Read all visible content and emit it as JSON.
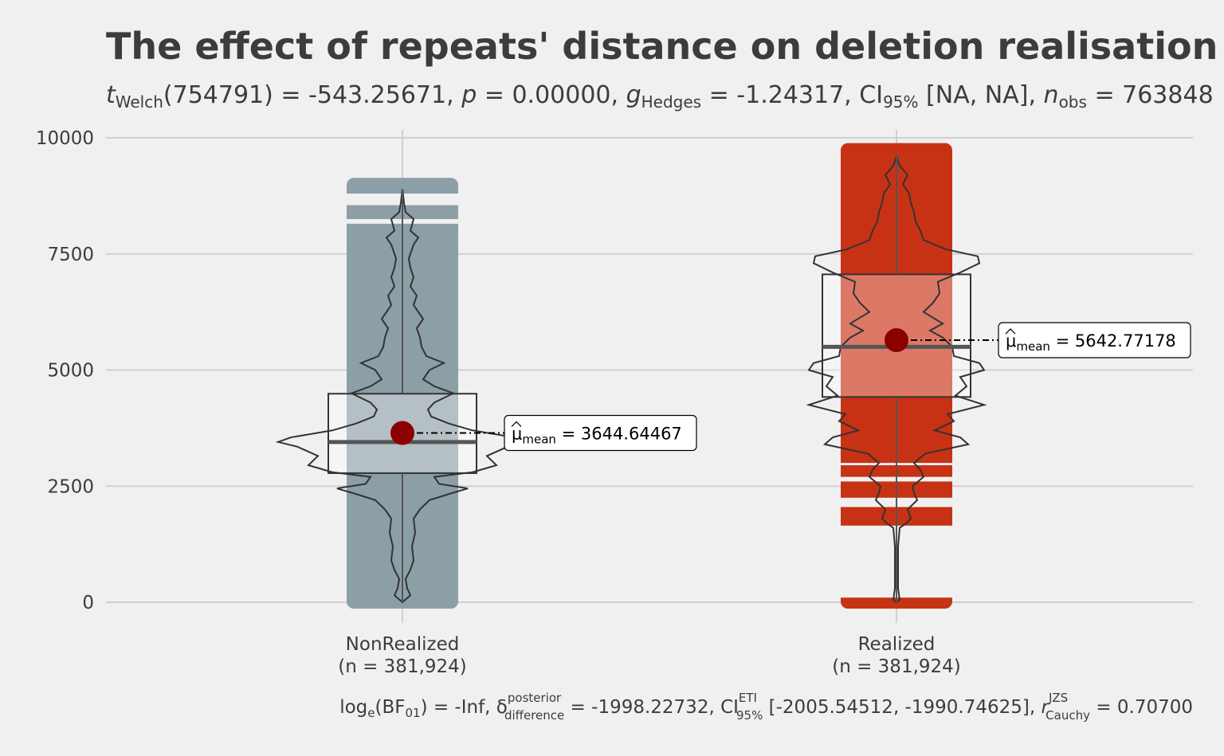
{
  "chart_data": {
    "type": "violin-box",
    "title": "The effect of repeats' distance on deletion realisation",
    "subtitle": {
      "t_label": "t",
      "t_sub": "Welch",
      "t_value": "(754791) = -543.25671, ",
      "p_label": "p",
      "p_value": " = 0.00000, ",
      "g_label": "g",
      "g_sub": "Hedges",
      "g_value": " = -1.24317, CI",
      "ci_sub": "95%",
      "ci_value": " [NA, NA], ",
      "n_label": "n",
      "n_sub": "obs",
      "n_value": " = 763848"
    },
    "ylim": [
      -600,
      10300
    ],
    "y_ticks": [
      "0",
      "2500",
      "5000",
      "7500",
      "10000"
    ],
    "grid": true,
    "groups": [
      {
        "label": "NonRealized",
        "n_label": "(n = 381,924)",
        "color": "#8c9fa6",
        "box": {
          "q1": 2780,
          "median": 3450,
          "q3": 4490,
          "whisker_low": 0,
          "whisker_high": 8900
        },
        "point_range": [
          0,
          9000
        ],
        "gaps": [
          [
            8550,
            8800
          ],
          [
            8150,
            8250
          ]
        ],
        "mean": 3644.64467,
        "mean_label": "3644.64467"
      },
      {
        "label": "Realized",
        "n_label": "(n = 381,924)",
        "color": "#c83214",
        "box": {
          "q1": 4420,
          "median": 5500,
          "q3": 7060,
          "whisker_low": 0,
          "whisker_high": 9650
        },
        "point_range": [
          0,
          9750
        ],
        "gaps": [
          [
            100,
            1650
          ],
          [
            2050,
            2250
          ],
          [
            2600,
            2700
          ],
          [
            2950,
            3000
          ]
        ],
        "mean": 5642.77178,
        "mean_label": "5642.77178"
      }
    ],
    "mean_marker_color": "#8b0000",
    "mean_symbol": "μ",
    "mean_sub": "mean",
    "mean_eq": " = ",
    "caption": {
      "log_label": "log",
      "log_sub": "e",
      "bf_label": "(BF",
      "bf_sub": "01",
      "bf_value": ") = -Inf, δ",
      "delta_sup": "posterior",
      "delta_sub": "difference",
      "delta_value": " = -1998.22732, CI",
      "ci_sup": "ETI",
      "ci_sub": "95%",
      "ci_value": " [-2005.54512, -1990.74625], ",
      "r_label": "r",
      "r_sup": "JZS",
      "r_sub": "Cauchy",
      "r_value": " = 0.70700"
    }
  }
}
